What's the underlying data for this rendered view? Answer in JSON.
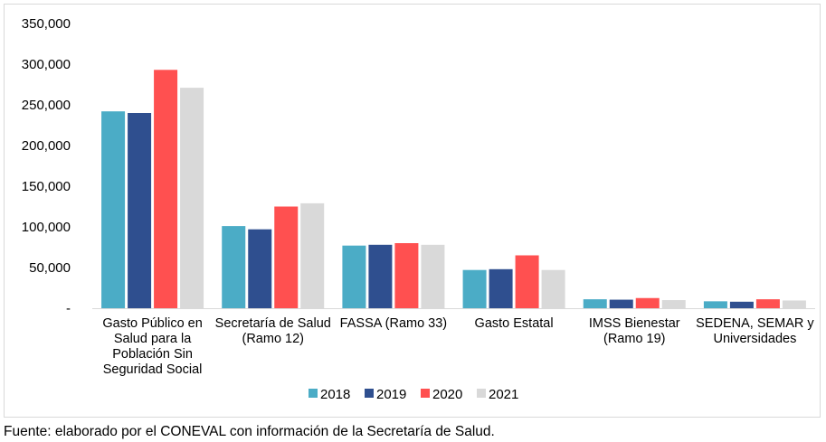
{
  "chart_data": {
    "type": "bar",
    "categories": [
      [
        "Gasto Público en",
        "Salud para la",
        "Población Sin",
        "Seguridad Social"
      ],
      [
        "Secretaría de Salud",
        "(Ramo 12)"
      ],
      [
        "FASSA (Ramo 33)"
      ],
      [
        "Gasto Estatal"
      ],
      [
        "IMSS Bienestar",
        "(Ramo 19)"
      ],
      [
        "SEDENA, SEMAR y",
        "Universidades"
      ]
    ],
    "series": [
      {
        "name": "2018",
        "color": "#4bacc6",
        "values": [
          242000,
          101000,
          77000,
          47000,
          11000,
          8500
        ]
      },
      {
        "name": "2019",
        "color": "#2f4f8f",
        "values": [
          240000,
          97000,
          78000,
          48000,
          10500,
          8000
        ]
      },
      {
        "name": "2020",
        "color": "#ff5050",
        "values": [
          293000,
          125000,
          80000,
          65000,
          12500,
          11000
        ]
      },
      {
        "name": "2021",
        "color": "#d9d9d9",
        "values": [
          271000,
          129000,
          78000,
          47000,
          10000,
          9500
        ]
      }
    ],
    "y_ticks": [
      "-",
      "50,000",
      "100,000",
      "150,000",
      "200,000",
      "250,000",
      "300,000",
      "350,000"
    ],
    "ylim": [
      0,
      350000
    ],
    "grid": false,
    "legend_position": "bottom-center"
  },
  "source_note": "Fuente: elaborado por el CONEVAL con información de la Secretaría de Salud."
}
